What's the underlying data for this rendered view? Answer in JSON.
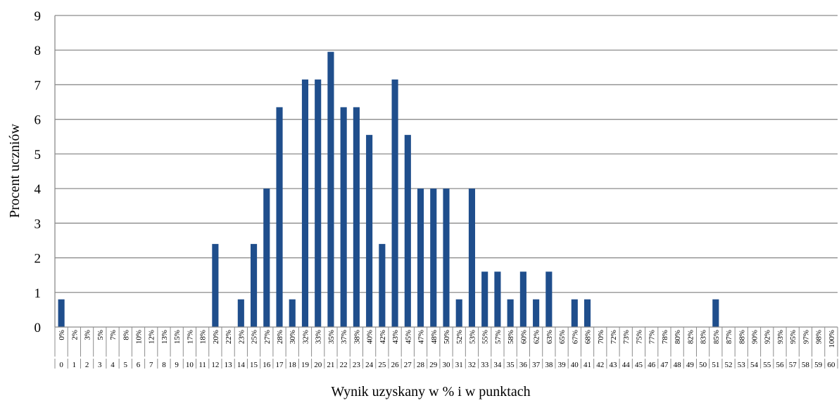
{
  "chart_data": {
    "type": "bar",
    "title": "",
    "xlabel": "Wynik uzyskany w % i w punktach",
    "ylabel": "Procent uczniów",
    "ylim": [
      0,
      9
    ],
    "yticks": [
      0,
      1,
      2,
      3,
      4,
      5,
      6,
      7,
      8,
      9
    ],
    "grid": true,
    "bar_color": "#1F4E8C",
    "categories_percent": [
      "0%",
      "2%",
      "3%",
      "5%",
      "7%",
      "8%",
      "10%",
      "12%",
      "13%",
      "15%",
      "17%",
      "18%",
      "20%",
      "22%",
      "23%",
      "25%",
      "27%",
      "28%",
      "30%",
      "32%",
      "33%",
      "35%",
      "37%",
      "38%",
      "40%",
      "42%",
      "43%",
      "45%",
      "47%",
      "48%",
      "50%",
      "52%",
      "53%",
      "55%",
      "57%",
      "58%",
      "60%",
      "62%",
      "63%",
      "65%",
      "67%",
      "68%",
      "70%",
      "72%",
      "73%",
      "75%",
      "77%",
      "78%",
      "80%",
      "82%",
      "83%",
      "85%",
      "87%",
      "88%",
      "90%",
      "92%",
      "93%",
      "95%",
      "97%",
      "98%",
      "100%"
    ],
    "categories_points": [
      "0",
      "1",
      "2",
      "3",
      "4",
      "5",
      "6",
      "7",
      "8",
      "9",
      "10",
      "11",
      "12",
      "13",
      "14",
      "15",
      "16",
      "17",
      "18",
      "19",
      "20",
      "21",
      "22",
      "23",
      "24",
      "25",
      "26",
      "27",
      "28",
      "29",
      "30",
      "31",
      "32",
      "33",
      "34",
      "35",
      "36",
      "37",
      "38",
      "39",
      "40",
      "41",
      "42",
      "43",
      "44",
      "45",
      "46",
      "47",
      "48",
      "49",
      "50",
      "51",
      "52",
      "53",
      "54",
      "55",
      "56",
      "57",
      "58",
      "59",
      "60"
    ],
    "values": [
      0.8,
      0,
      0,
      0,
      0,
      0,
      0,
      0,
      0,
      0,
      0,
      0,
      2.4,
      0,
      0.8,
      2.4,
      4,
      6.35,
      0.8,
      7.15,
      7.15,
      7.95,
      6.35,
      6.35,
      5.55,
      2.4,
      7.15,
      5.55,
      4,
      4,
      4,
      0.8,
      4,
      1.6,
      1.6,
      0.8,
      1.6,
      0.8,
      1.6,
      0,
      0.8,
      0.8,
      0,
      0,
      0,
      0,
      0,
      0,
      0,
      0,
      0,
      0.8,
      0,
      0,
      0,
      0,
      0,
      0,
      0,
      0,
      0
    ]
  }
}
